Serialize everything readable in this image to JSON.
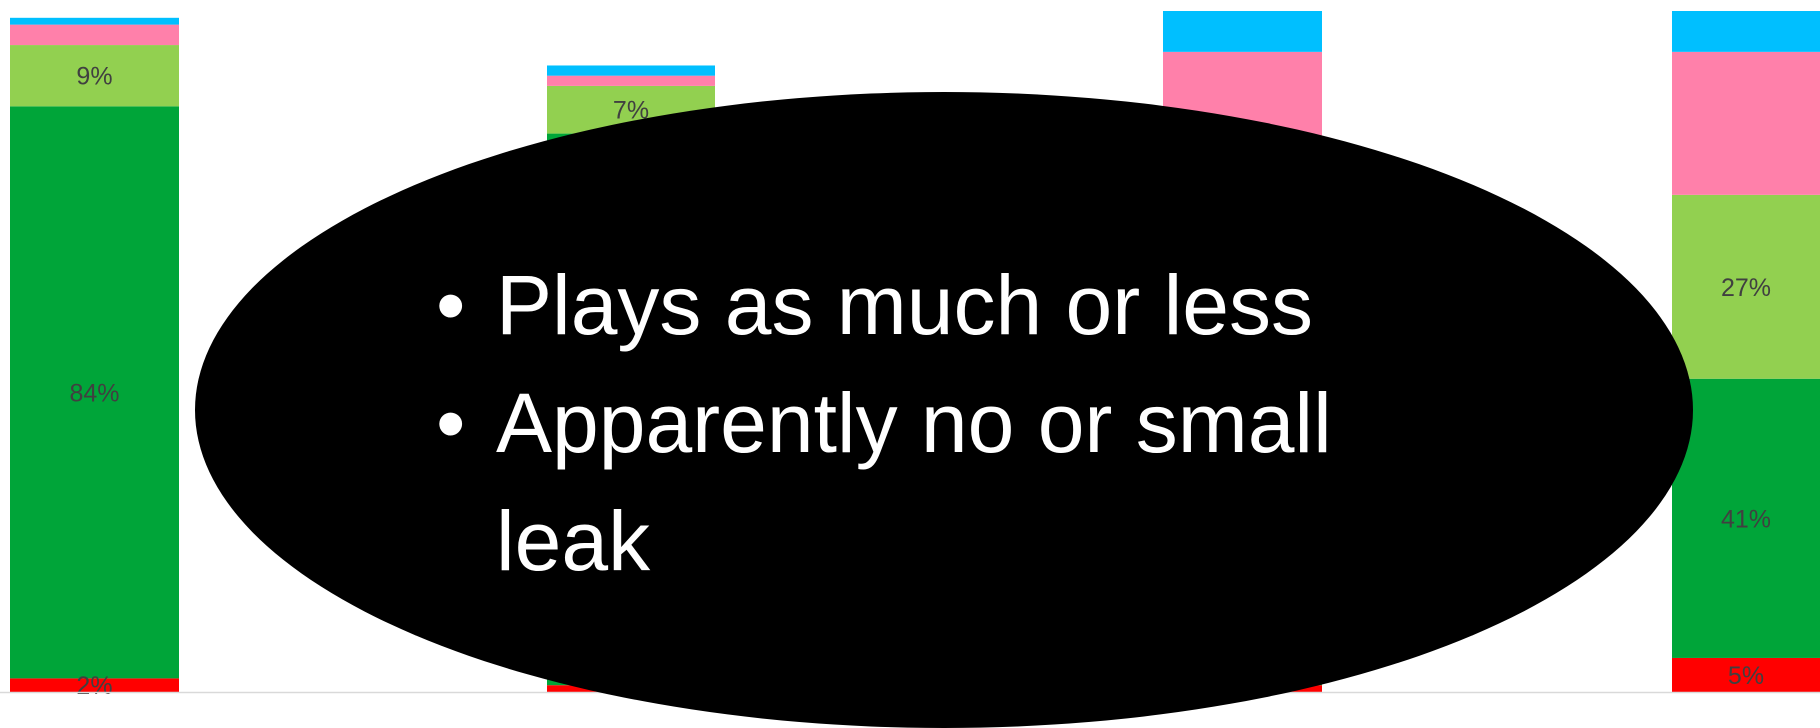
{
  "chart_data": {
    "type": "bar",
    "stacked": true,
    "categories": [
      "",
      "",
      "",
      ""
    ],
    "series": [
      {
        "values": [
          2,
          1,
          1,
          5
        ],
        "color": "#ff0000"
      },
      {
        "values": [
          84,
          81,
          20,
          41
        ],
        "color": "#00a539"
      },
      {
        "values": [
          9,
          7,
          20,
          27
        ],
        "color": "#92d050"
      },
      {
        "values": [
          3,
          1.5,
          53,
          21
        ],
        "color": "#ff80aa"
      },
      {
        "values": [
          1,
          1.5,
          6,
          6
        ],
        "color": "#00bfff"
      }
    ],
    "data_labels": [
      [
        "2%",
        "",
        "",
        "5%"
      ],
      [
        "84%",
        "",
        "",
        "41%"
      ],
      [
        "9%",
        "7%",
        "",
        "27%"
      ],
      [
        "",
        "",
        "",
        ""
      ],
      [
        "",
        "",
        "",
        ""
      ]
    ],
    "ylim": [
      0,
      100
    ],
    "grid": false,
    "legend": "none"
  },
  "callout": {
    "bullet_symbol": "•",
    "bullets": [
      "Plays as much or less",
      "Apparently no or small leak"
    ]
  }
}
